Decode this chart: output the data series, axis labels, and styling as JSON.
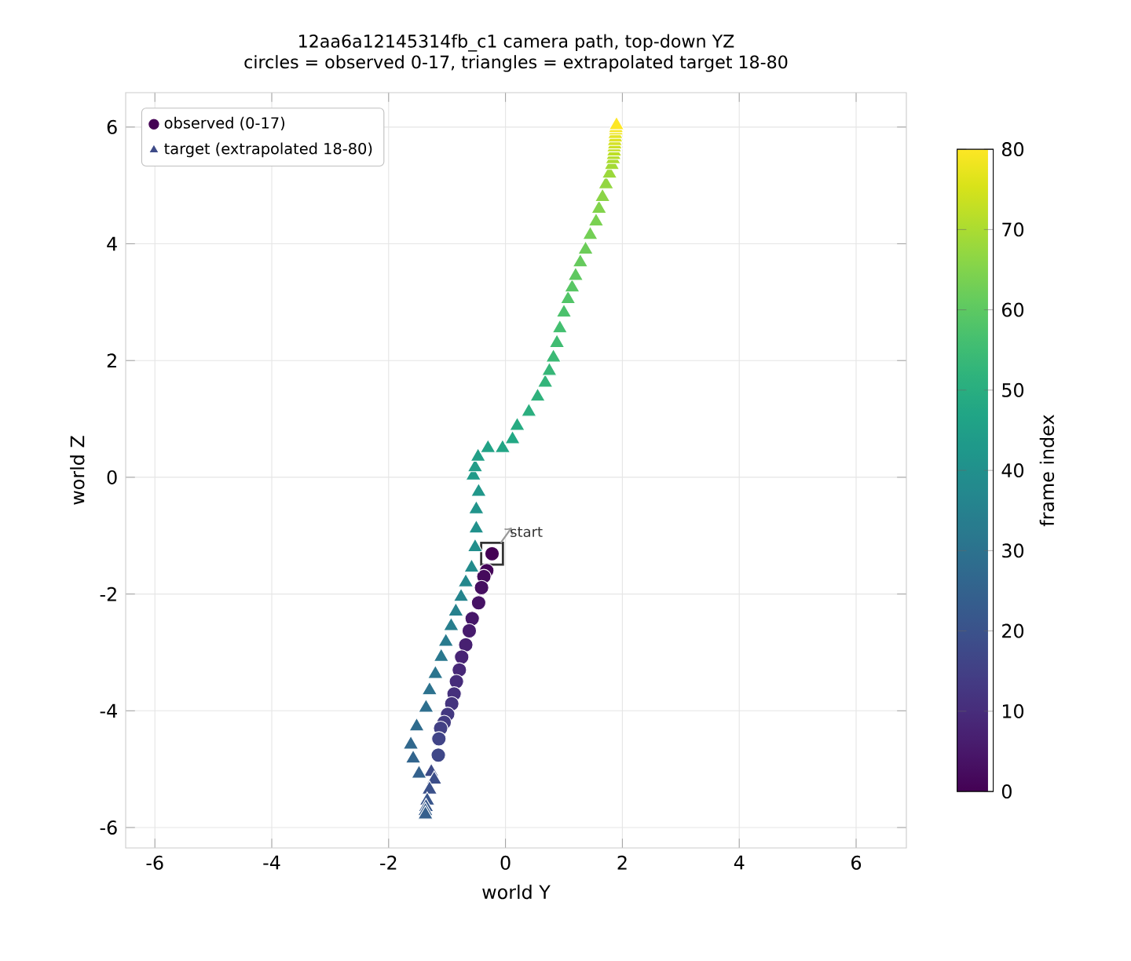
{
  "chart_data": {
    "type": "scatter",
    "title": "12aa6a12145314fb_c1 camera path, top-down YZ",
    "subtitle": "circles = observed 0-17, triangles = extrapolated target 18-80",
    "xlabel": "world Y",
    "ylabel": "world Z",
    "clabel": "frame index",
    "series": [
      {
        "name": "observed (0-17)",
        "marker": "circle",
        "colors": [
          "#440154",
          "#440558",
          "#450a5c",
          "#450e60",
          "#461264",
          "#461769",
          "#471b6d",
          "#472071",
          "#482475",
          "#472877",
          "#462c7a",
          "#45307c",
          "#44347e",
          "#433880",
          "#433c82",
          "#424085",
          "#414487",
          "#3f4788"
        ],
        "x": [
          -0.23,
          -0.32,
          -0.37,
          -0.41,
          -0.46,
          -0.57,
          -0.62,
          -0.68,
          -0.75,
          -0.79,
          -0.84,
          -0.88,
          -0.92,
          -0.99,
          -1.05,
          -1.11,
          -1.14,
          -1.15
        ],
        "values": [
          -1.31,
          -1.6,
          -1.7,
          -1.89,
          -2.15,
          -2.42,
          -2.63,
          -2.87,
          -3.08,
          -3.3,
          -3.5,
          -3.71,
          -3.88,
          -4.06,
          -4.2,
          -4.3,
          -4.48,
          -4.76
        ]
      },
      {
        "name": "target (extrapolated 18-80)",
        "marker": "triangle",
        "colors": [
          "#3e4b88",
          "#3c4e89",
          "#3b518a",
          "#39558b",
          "#38588b",
          "#365c8c",
          "#355f8d",
          "#34628d",
          "#32658d",
          "#31688d",
          "#2f6b8d",
          "#2e6f8e",
          "#2d728e",
          "#2b758e",
          "#2a788e",
          "#297b8e",
          "#287e8d",
          "#27818d",
          "#25848d",
          "#24888d",
          "#238b8c",
          "#228e8c",
          "#21918c",
          "#21948b",
          "#21978a",
          "#219a89",
          "#229c88",
          "#229f87",
          "#22a286",
          "#22a585",
          "#22a884",
          "#26ab82",
          "#2bae7f",
          "#2fb17c",
          "#33b47a",
          "#37b678",
          "#3cb975",
          "#40bc72",
          "#44bf70",
          "#4bc16c",
          "#52c468",
          "#58c664",
          "#5fc860",
          "#66ca5d",
          "#6ccc59",
          "#73cf55",
          "#7ad151",
          "#82d34c",
          "#8bd446",
          "#93d641",
          "#9bd83b",
          "#a4da36",
          "#acdc31",
          "#b5dd2b",
          "#bddf26",
          "#c5e026",
          "#cde126",
          "#d5e226",
          "#dde325",
          "#e5e425",
          "#ede525",
          "#f5e625",
          "#fde725"
        ],
        "x": [
          -1.27,
          -1.22,
          -1.3,
          -1.34,
          -1.36,
          -1.37,
          -1.37,
          -1.48,
          -1.58,
          -1.62,
          -1.52,
          -1.36,
          -1.3,
          -1.2,
          -1.1,
          -1.02,
          -0.93,
          -0.85,
          -0.76,
          -0.68,
          -0.58,
          -0.52,
          -0.5,
          -0.5,
          -0.46,
          -0.55,
          -0.52,
          -0.47,
          -0.3,
          -0.05,
          0.12,
          0.2,
          0.4,
          0.55,
          0.68,
          0.75,
          0.82,
          0.88,
          0.93,
          1.0,
          1.07,
          1.14,
          1.2,
          1.28,
          1.37,
          1.45,
          1.55,
          1.6,
          1.66,
          1.72,
          1.78,
          1.82,
          1.84,
          1.85,
          1.86,
          1.86,
          1.87,
          1.87,
          1.88,
          1.88,
          1.89,
          1.89,
          1.9
        ],
        "values": [
          -5.05,
          -5.18,
          -5.35,
          -5.54,
          -5.65,
          -5.72,
          -5.78,
          -5.08,
          -4.82,
          -4.58,
          -4.27,
          -3.95,
          -3.65,
          -3.37,
          -3.08,
          -2.82,
          -2.55,
          -2.3,
          -2.05,
          -1.8,
          -1.55,
          -1.2,
          -0.88,
          -0.55,
          -0.25,
          0.03,
          0.17,
          0.35,
          0.5,
          0.5,
          0.65,
          0.88,
          1.12,
          1.38,
          1.62,
          1.82,
          2.05,
          2.3,
          2.55,
          2.82,
          3.05,
          3.25,
          3.45,
          3.68,
          3.9,
          4.15,
          4.38,
          4.6,
          4.8,
          5.02,
          5.2,
          5.35,
          5.45,
          5.52,
          5.58,
          5.65,
          5.7,
          5.76,
          5.82,
          5.88,
          5.94,
          5.98,
          6.03
        ]
      }
    ],
    "xlim": [
      -6.5,
      6.86
    ],
    "ylim": [
      -6.35,
      6.59
    ],
    "xticks": [
      -6,
      -4,
      -2,
      0,
      2,
      4,
      6
    ],
    "yticks": [
      -6,
      -4,
      -2,
      0,
      2,
      4,
      6
    ],
    "clim": [
      0,
      80
    ],
    "cticks": [
      0,
      10,
      20,
      30,
      40,
      50,
      60,
      70,
      80
    ],
    "grid": true,
    "legend": "top left",
    "annotations": [
      {
        "text": "start",
        "x": -0.23,
        "y": -1.31
      }
    ]
  }
}
